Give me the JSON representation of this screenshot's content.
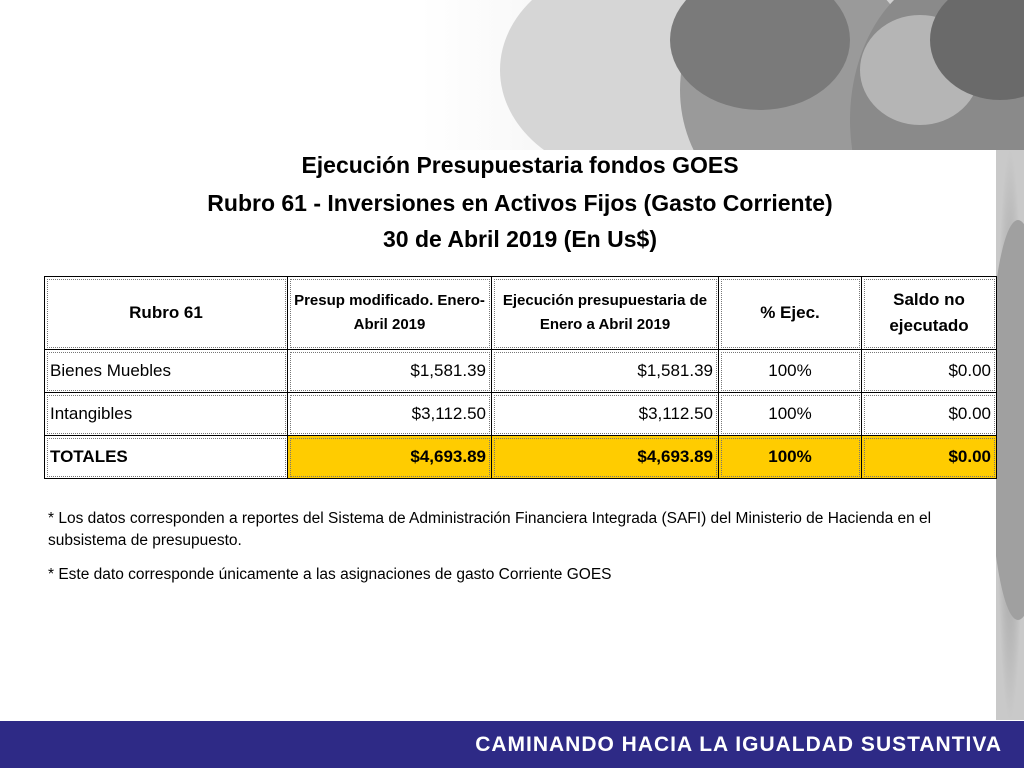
{
  "title": {
    "line1": "Ejecución Presupuestaria fondos GOES",
    "line2": "Rubro 61 - Inversiones en Activos Fijos (Gasto Corriente)",
    "line3": "30 de Abril 2019 (En Us$)"
  },
  "table": {
    "headers": [
      "Rubro 61",
      "Presup modificado. Enero-Abril 2019",
      "Ejecución presupuestaria de Enero a Abril 2019",
      "% Ejec.",
      "Saldo no ejecutado"
    ],
    "rows": [
      [
        "Bienes Muebles",
        "$1,581.39",
        "$1,581.39",
        "100%",
        "$0.00"
      ],
      [
        "Intangibles",
        "$3,112.50",
        "$3,112.50",
        "100%",
        "$0.00"
      ]
    ],
    "totals": [
      "TOTALES",
      "$4,693.89",
      "$4,693.89",
      "100%",
      "$0.00"
    ]
  },
  "notes": [
    "*  Los datos corresponden a reportes del Sistema de Administración Financiera Integrada (SAFI) del Ministerio de Hacienda en el subsistema de presupuesto.",
    "*  Este dato corresponde únicamente a las asignaciones de gasto Corriente GOES"
  ],
  "footer": {
    "slogan": "CAMINANDO HACIA LA IGUALDAD SUSTANTIVA"
  },
  "colors": {
    "highlight": "#ffcc00",
    "footer_bar": "#2e2a86"
  }
}
